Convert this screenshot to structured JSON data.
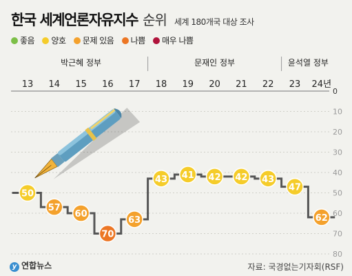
{
  "title": {
    "main": "한국 세계언론자유지수",
    "sub": "순위",
    "note": "세계 180개국 대상 조사"
  },
  "legend": [
    {
      "label": "좋음",
      "color": "#7cbf47"
    },
    {
      "label": "양호",
      "color": "#f5cc2a"
    },
    {
      "label": "문제 있음",
      "color": "#f4a12c"
    },
    {
      "label": "나쁨",
      "color": "#ec7624"
    },
    {
      "label": "매우 나쁨",
      "color": "#b0133b"
    }
  ],
  "chart_data": {
    "type": "line",
    "categories": [
      "13",
      "14",
      "15",
      "16",
      "17",
      "18",
      "19",
      "20",
      "21",
      "22",
      "23",
      "24년"
    ],
    "values": [
      50,
      57,
      60,
      70,
      63,
      43,
      41,
      42,
      42,
      43,
      47,
      62
    ],
    "point_colors": [
      "#f5cc2a",
      "#f4a12c",
      "#f4a12c",
      "#ec7624",
      "#f4a12c",
      "#f5cc2a",
      "#f5cc2a",
      "#f5cc2a",
      "#f5cc2a",
      "#f5cc2a",
      "#f5cc2a",
      "#f4a12c"
    ],
    "y_axis": {
      "ticks": [
        0,
        10,
        20,
        30,
        40,
        50,
        60,
        70,
        80
      ],
      "range": [
        0,
        80
      ],
      "inverted": true
    },
    "eras": [
      {
        "label": "박근혜 정부",
        "from": "13",
        "to": "17"
      },
      {
        "label": "문재인 정부",
        "from": "18",
        "to": "22"
      },
      {
        "label": "윤석열 정부",
        "from": "23",
        "to": "24년"
      }
    ],
    "style": "step"
  },
  "footer": {
    "logo": "연합뉴스",
    "logo_mark": "y",
    "source": "자료: 국경없는기자회(RSF)"
  }
}
